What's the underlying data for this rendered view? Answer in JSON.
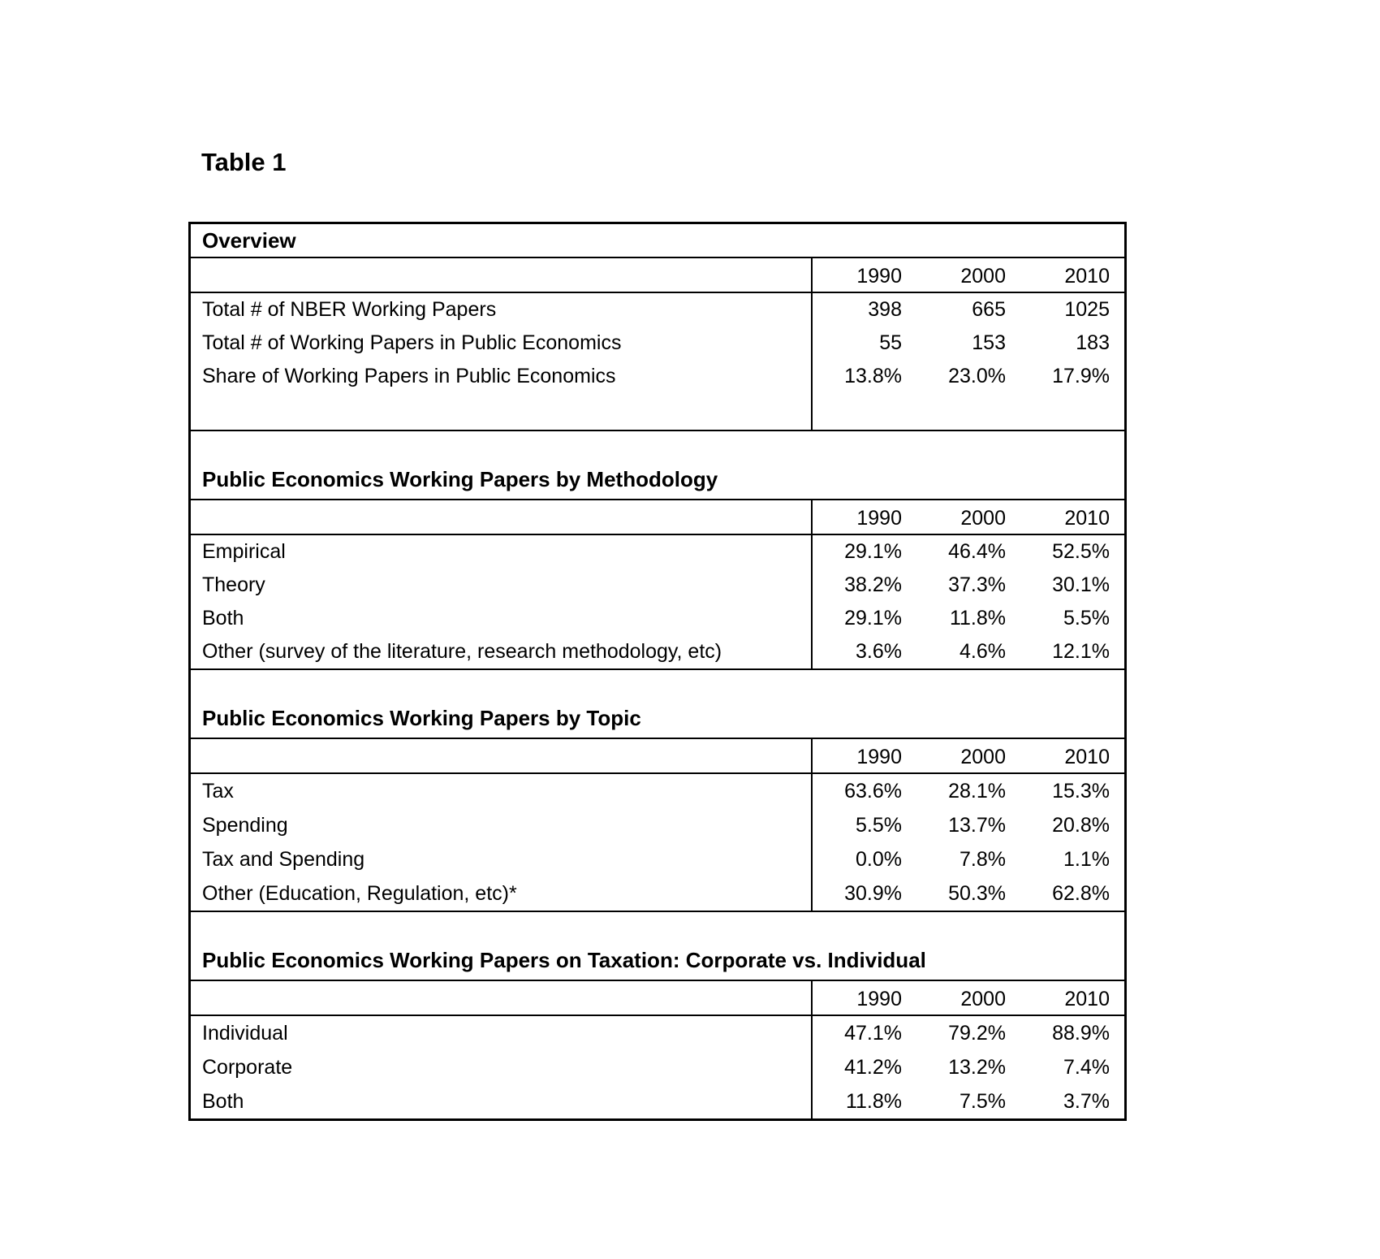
{
  "page_title": "Table 1",
  "table": {
    "sections": [
      {
        "title": "Overview",
        "years": [
          "1990",
          "2000",
          "2010"
        ],
        "rows": [
          {
            "label": "Total # of  NBER Working Papers",
            "values": [
              "398",
              "665",
              "1025"
            ]
          },
          {
            "label": "Total # of Working Papers in Public Economics",
            "values": [
              "55",
              "153",
              "183"
            ]
          },
          {
            "label": "Share of Working Papers in Public Economics",
            "values": [
              "13.8%",
              "23.0%",
              "17.9%"
            ]
          }
        ]
      },
      {
        "title": "Public Economics Working Papers by Methodology",
        "years": [
          "1990",
          "2000",
          "2010"
        ],
        "rows": [
          {
            "label": "Empirical",
            "values": [
              "29.1%",
              "46.4%",
              "52.5%"
            ]
          },
          {
            "label": "Theory",
            "values": [
              "38.2%",
              "37.3%",
              "30.1%"
            ]
          },
          {
            "label": "Both",
            "values": [
              "29.1%",
              "11.8%",
              "5.5%"
            ]
          },
          {
            "label": "Other (survey of the literature, research methodology, etc)",
            "values": [
              "3.6%",
              "4.6%",
              "12.1%"
            ]
          }
        ]
      },
      {
        "title": "Public Economics Working Papers by Topic",
        "years": [
          "1990",
          "2000",
          "2010"
        ],
        "rows": [
          {
            "label": "Tax",
            "values": [
              "63.6%",
              "28.1%",
              "15.3%"
            ]
          },
          {
            "label": "Spending",
            "values": [
              "5.5%",
              "13.7%",
              "20.8%"
            ]
          },
          {
            "label": "Tax and Spending",
            "values": [
              "0.0%",
              "7.8%",
              "1.1%"
            ]
          },
          {
            "label": "Other (Education, Regulation, etc)*",
            "values": [
              "30.9%",
              "50.3%",
              "62.8%"
            ]
          }
        ]
      },
      {
        "title": "Public Economics Working Papers on Taxation: Corporate vs. Individual",
        "years": [
          "1990",
          "2000",
          "2010"
        ],
        "rows": [
          {
            "label": "Individual",
            "values": [
              "47.1%",
              "79.2%",
              "88.9%"
            ]
          },
          {
            "label": "Corporate",
            "values": [
              "41.2%",
              "13.2%",
              "7.4%"
            ]
          },
          {
            "label": "Both",
            "values": [
              "11.8%",
              "7.5%",
              "3.7%"
            ]
          }
        ]
      }
    ]
  },
  "chart_data": {
    "type": "table",
    "title": "Table 1",
    "categories": [
      "1990",
      "2000",
      "2010"
    ],
    "series": [
      {
        "name": "Total # of NBER Working Papers",
        "values": [
          398,
          665,
          1025
        ]
      },
      {
        "name": "Total # of Working Papers in Public Economics",
        "values": [
          55,
          153,
          183
        ]
      },
      {
        "name": "Share of Working Papers in Public Economics (%)",
        "values": [
          13.8,
          23.0,
          17.9
        ]
      },
      {
        "name": "Methodology: Empirical (%)",
        "values": [
          29.1,
          46.4,
          52.5
        ]
      },
      {
        "name": "Methodology: Theory (%)",
        "values": [
          38.2,
          37.3,
          30.1
        ]
      },
      {
        "name": "Methodology: Both (%)",
        "values": [
          29.1,
          11.8,
          5.5
        ]
      },
      {
        "name": "Methodology: Other (%)",
        "values": [
          3.6,
          4.6,
          12.1
        ]
      },
      {
        "name": "Topic: Tax (%)",
        "values": [
          63.6,
          28.1,
          15.3
        ]
      },
      {
        "name": "Topic: Spending (%)",
        "values": [
          5.5,
          13.7,
          20.8
        ]
      },
      {
        "name": "Topic: Tax and Spending (%)",
        "values": [
          0.0,
          7.8,
          1.1
        ]
      },
      {
        "name": "Topic: Other (%)",
        "values": [
          30.9,
          50.3,
          62.8
        ]
      },
      {
        "name": "Taxation: Individual (%)",
        "values": [
          47.1,
          79.2,
          88.9
        ]
      },
      {
        "name": "Taxation: Corporate (%)",
        "values": [
          41.2,
          13.2,
          7.4
        ]
      },
      {
        "name": "Taxation: Both (%)",
        "values": [
          11.8,
          7.5,
          3.7
        ]
      }
    ]
  }
}
